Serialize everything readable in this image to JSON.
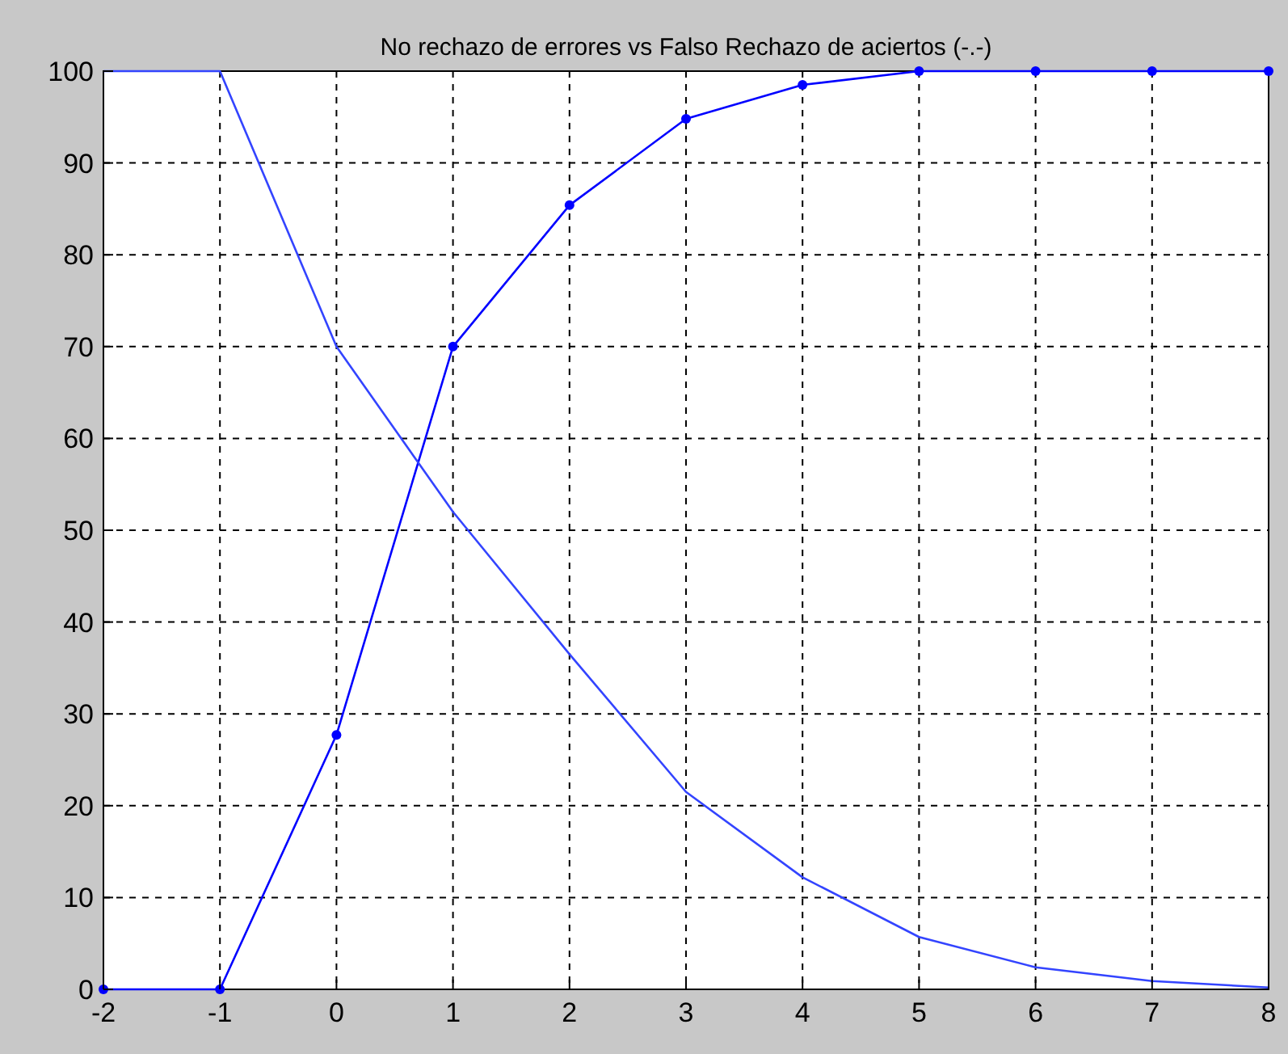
{
  "chart_data": {
    "type": "line",
    "title": "No rechazo de errores vs Falso Rechazo de aciertos (-.-)",
    "x": [
      -2,
      -1,
      0,
      1,
      2,
      3,
      4,
      5,
      6,
      7,
      8
    ],
    "series": [
      {
        "color": "#0000ff",
        "marker": "circle",
        "values": [
          0,
          0,
          27.7,
          70,
          85.4,
          94.8,
          98.5,
          100,
          100,
          100,
          100
        ]
      },
      {
        "color": "#3344ff",
        "marker": "none",
        "values": [
          100,
          100,
          70,
          52,
          36.5,
          21.5,
          12.2,
          5.7,
          2.4,
          0.9,
          0.2
        ]
      }
    ],
    "xlim": [
      -2,
      8
    ],
    "xticks": [
      -2,
      -1,
      0,
      1,
      2,
      3,
      4,
      5,
      6,
      7,
      8
    ],
    "ylim": [
      0,
      100
    ],
    "yticks": [
      0,
      10,
      20,
      30,
      40,
      50,
      60,
      70,
      80,
      90,
      100
    ],
    "grid": true,
    "line_style": "solid"
  }
}
